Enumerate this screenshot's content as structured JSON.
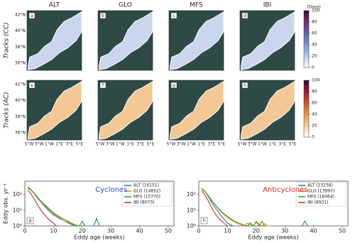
{
  "maps": {
    "columns": [
      "ALT",
      "GLO",
      "MFS",
      "IBI"
    ],
    "rows": [
      "Tracks (CC)",
      "Tracks (AC)"
    ],
    "panel_letters": [
      "a",
      "b",
      "c",
      "d",
      "e",
      "f",
      "g",
      "h"
    ],
    "lat_labels": [
      "42°N",
      "40°N",
      "38°N",
      "36°N"
    ],
    "lon_labels": [
      "5°W",
      "3°W",
      "1°W",
      "1°E",
      "3°E",
      "5°E"
    ]
  },
  "colorbars": [
    {
      "label": "(Days)",
      "lim": [
        0,
        100
      ],
      "ticks": [
        0,
        20,
        40,
        60,
        80,
        100
      ]
    },
    {
      "lim": [
        0,
        100
      ],
      "ticks": [
        0,
        20,
        40,
        60,
        80,
        100
      ]
    }
  ],
  "chart_data": [
    {
      "type": "line",
      "title": "Cyclones",
      "title_color": "#1f4fd0",
      "panel_letter": "g",
      "xlabel": "Eddy age (weeks)",
      "ylabel": "Eddy obs. yr⁻¹",
      "log_y": true,
      "xlim": [
        0,
        52
      ],
      "xticks": [
        0,
        10,
        20,
        30,
        40,
        50
      ],
      "ylim": [
        1,
        700
      ],
      "yticks": [
        {
          "value": 1,
          "label": "10⁰"
        },
        {
          "value": 10,
          "label": "10¹"
        },
        {
          "value": 100,
          "label": "10²"
        }
      ],
      "x": [
        1,
        2,
        3,
        4,
        5,
        6,
        7,
        8,
        9,
        10,
        11,
        12,
        13,
        14,
        15,
        16,
        17,
        18,
        19,
        20,
        21,
        22,
        23,
        24,
        25,
        26
      ],
      "series": [
        {
          "name": "ALT (16151)",
          "color": "#1f77b4",
          "values": [
            300,
            220,
            130,
            75,
            45,
            28,
            17,
            11,
            7,
            5,
            4,
            3,
            2.5,
            2,
            1.6,
            1.3,
            1.1,
            1,
            null,
            null,
            null,
            null,
            null,
            1,
            3,
            1
          ]
        },
        {
          "name": "GLO (14852)",
          "color": "#ff7f0e",
          "values": [
            280,
            210,
            140,
            85,
            50,
            30,
            20,
            13,
            9,
            6,
            4.5,
            3.5,
            2.5,
            2,
            1.8,
            1.4,
            1.2,
            1,
            null,
            2,
            1,
            null,
            null,
            null,
            null,
            null
          ]
        },
        {
          "name": "MFS (15770)",
          "color": "#2ca02c",
          "values": [
            260,
            200,
            130,
            80,
            50,
            32,
            22,
            15,
            10,
            7,
            5,
            4,
            3,
            2.5,
            2,
            1.6,
            1.3,
            1.1,
            1,
            2,
            1,
            null,
            null,
            null,
            null,
            null
          ]
        },
        {
          "name": "IBI (8073)",
          "color": "#d62728",
          "values": [
            200,
            120,
            60,
            30,
            15,
            8,
            5,
            3,
            2,
            1.5,
            1,
            null,
            null,
            null,
            null,
            null,
            null,
            null,
            null,
            null,
            null,
            null,
            null,
            null,
            null,
            null
          ]
        }
      ]
    },
    {
      "type": "line",
      "title": "Anticyclones",
      "title_color": "#d62728",
      "panel_letter": "h",
      "xlabel": "Eddy age (weeks)",
      "log_y": true,
      "xlim": [
        0,
        52
      ],
      "xticks": [
        0,
        10,
        20,
        30,
        40,
        50
      ],
      "ylim": [
        1,
        700
      ],
      "yticks": [
        {
          "value": 1,
          "label": "10⁰"
        },
        {
          "value": 10,
          "label": "10¹"
        },
        {
          "value": 100,
          "label": "10²"
        }
      ],
      "x": [
        1,
        2,
        3,
        4,
        5,
        6,
        7,
        8,
        9,
        10,
        11,
        12,
        13,
        14,
        15,
        16,
        17,
        18,
        19,
        20,
        21,
        22,
        23,
        24,
        25,
        26,
        27,
        28,
        29,
        30,
        31,
        32,
        33,
        34,
        35,
        36,
        37,
        38
      ],
      "series": [
        {
          "name": "ALT (13258)",
          "color": "#1f77b4",
          "values": [
            250,
            170,
            90,
            45,
            22,
            12,
            7,
            4,
            2.5,
            1.5,
            1.2,
            1,
            null,
            null,
            null,
            null,
            null,
            null,
            null,
            null,
            null,
            null,
            null,
            null,
            null,
            null,
            null,
            null,
            null,
            null,
            null,
            null,
            null,
            null,
            null,
            1,
            2,
            1
          ]
        },
        {
          "name": "GLO (13997)",
          "color": "#ff7f0e",
          "values": [
            240,
            170,
            100,
            55,
            30,
            18,
            11,
            7,
            5,
            3.5,
            2.5,
            2,
            1.6,
            1.3,
            1.2,
            1,
            1.5,
            1.2,
            1,
            2,
            1.3,
            1,
            1.4,
            1,
            1,
            null,
            null,
            null,
            null,
            null,
            null,
            null,
            null,
            null,
            null,
            null,
            null,
            null
          ]
        },
        {
          "name": "MFS (16064)",
          "color": "#2ca02c",
          "values": [
            230,
            160,
            95,
            55,
            32,
            20,
            12,
            8,
            5.5,
            4,
            3,
            2.2,
            1.8,
            1.5,
            1.3,
            1.1,
            1,
            1.6,
            1,
            1.8,
            1,
            2,
            1,
            null,
            null,
            null,
            null,
            null,
            null,
            null,
            null,
            null,
            null,
            null,
            null,
            null,
            null,
            null
          ]
        },
        {
          "name": "IBI (8931)",
          "color": "#d62728",
          "values": [
            180,
            100,
            50,
            22,
            10,
            5,
            3,
            2,
            1.4,
            1,
            null,
            null,
            null,
            null,
            null,
            null,
            null,
            null,
            null,
            null,
            null,
            null,
            null,
            null,
            null,
            null,
            null,
            null,
            null,
            null,
            null,
            null,
            null,
            null,
            null,
            null,
            null,
            null
          ]
        }
      ]
    }
  ]
}
